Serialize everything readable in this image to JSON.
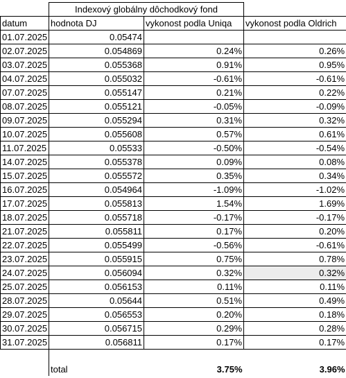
{
  "title": "Indexový globálny dôchodkový fond",
  "header": [
    "datum",
    "hodnota DJ",
    "vykonost podla Uniqa",
    "vykonost podla Oldrich"
  ],
  "rows": [
    [
      "01.07.2025",
      "0.05474"
    ],
    [
      "02.07.2025",
      "0.054869",
      "0.24%",
      "0.26%"
    ],
    [
      "03.07.2025",
      "0.055368",
      "0.91%",
      "0.95%"
    ],
    [
      "04.07.2025",
      "0.055032",
      "-0.61%",
      "-0.61%"
    ],
    [
      "07.07.2025",
      "0.055147",
      "0.21%",
      "0.22%"
    ],
    [
      "08.07.2025",
      "0.055121",
      "-0.05%",
      "-0.09%"
    ],
    [
      "09.07.2025",
      "0.055294",
      "0.31%",
      "0.32%"
    ],
    [
      "10.07.2025",
      "0.055608",
      "0.57%",
      "0.61%"
    ],
    [
      "11.07.2025",
      "0.05533",
      "-0.50%",
      "-0.54%"
    ],
    [
      "14.07.2025",
      "0.055378",
      "0.09%",
      "0.08%"
    ],
    [
      "15.07.2025",
      "0.055572",
      "0.35%",
      "0.34%"
    ],
    [
      "16.07.2025",
      "0.054964",
      "-1.09%",
      "-1.02%"
    ],
    [
      "17.07.2025",
      "0.055813",
      "1.54%",
      "1.69%"
    ],
    [
      "18.07.2025",
      "0.055718",
      "-0.17%",
      "-0.17%"
    ],
    [
      "21.07.2025",
      "0.055811",
      "0.17%",
      "0.20%"
    ],
    [
      "22.07.2025",
      "0.055499",
      "-0.56%",
      "-0.61%"
    ],
    [
      "23.07.2025",
      "0.055915",
      "0.75%",
      "0.78%"
    ],
    [
      "24.07.2025",
      "0.056094",
      "0.32%",
      "0.32%"
    ],
    [
      "25.07.2025",
      "0.056153",
      "0.11%",
      "0.11%"
    ],
    [
      "28.07.2025",
      "0.05644",
      "0.51%",
      "0.49%"
    ],
    [
      "29.07.2025",
      "0.056553",
      "0.20%",
      "0.18%"
    ],
    [
      "30.07.2025",
      "0.056715",
      "0.29%",
      "0.28%"
    ],
    [
      "31.07.2025",
      "0.056811",
      "0.17%",
      "0.17%"
    ]
  ],
  "total": {
    "label": "total",
    "values": [
      "3.75%",
      "3.96%"
    ]
  }
}
